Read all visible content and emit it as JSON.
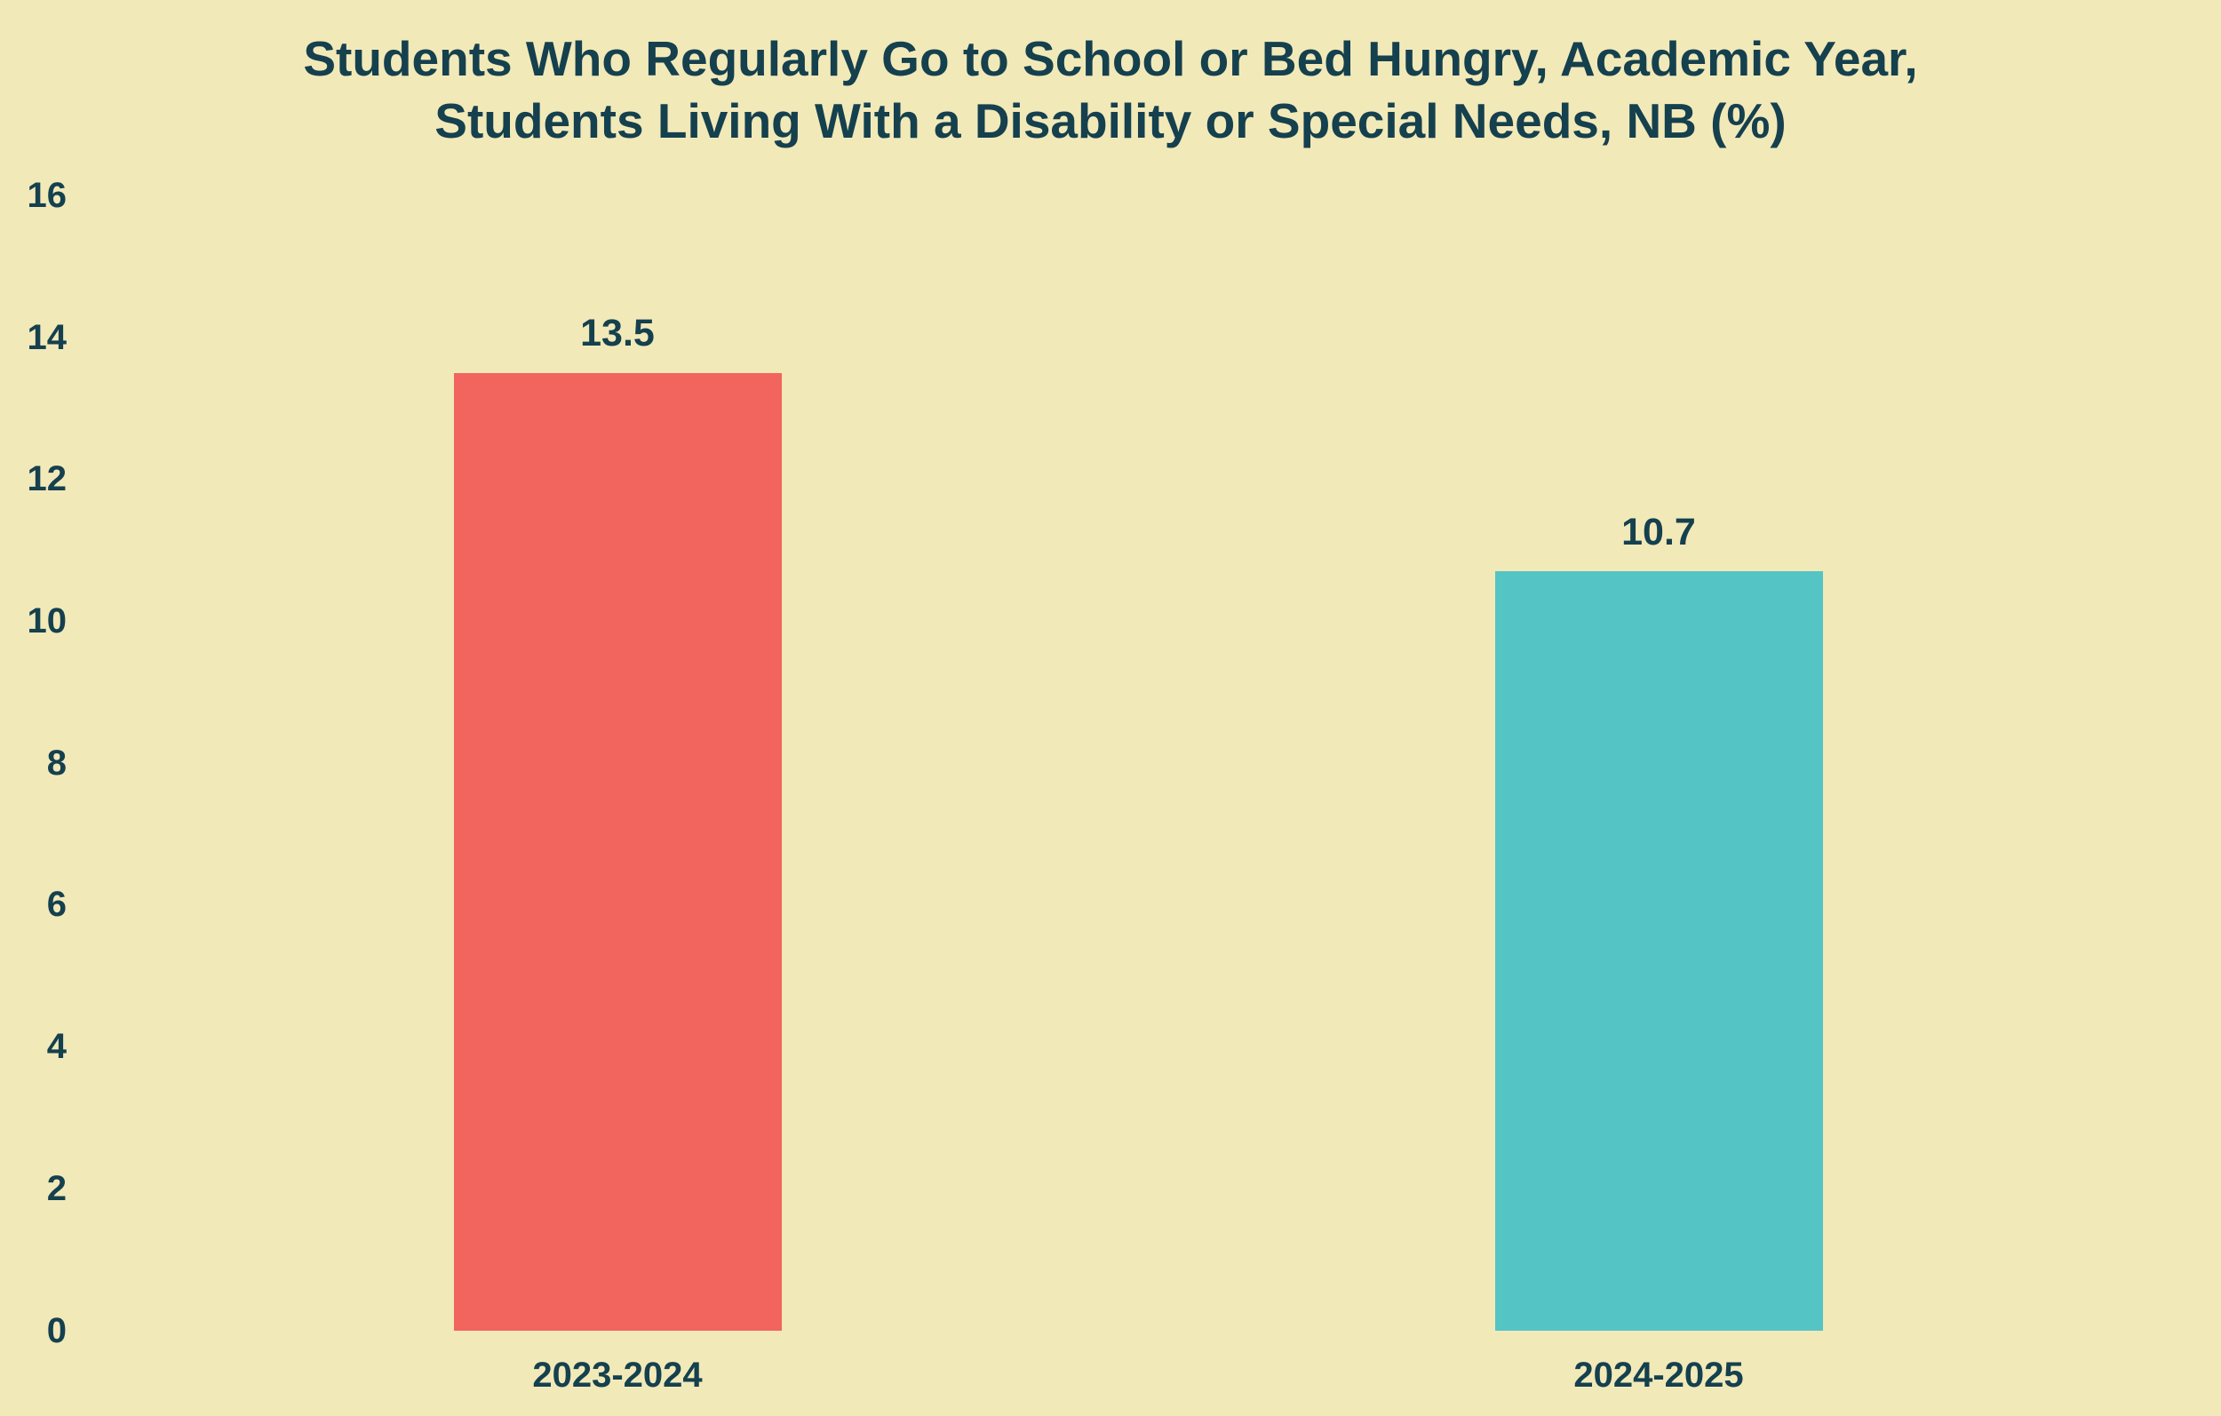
{
  "page": {
    "background": "#F2E9B9",
    "text_color": "#15404E"
  },
  "title": {
    "line1": "Students Who Regularly Go to School or Bed Hungry, Academic Year,",
    "line2": "Students Living With a Disability or Special Needs, NB (%)"
  },
  "chart_data": {
    "type": "bar",
    "title": "Students Who Regularly Go to School or Bed Hungry, Academic Year, Students Living With a Disability or Special Needs, NB (%)",
    "categories": [
      "2023-2024",
      "2024-2025"
    ],
    "values": [
      13.5,
      10.7
    ],
    "value_labels": [
      "13.5",
      "10.7"
    ],
    "bar_colors": [
      "#F2645E",
      "#55C4C4"
    ],
    "xlabel": "",
    "ylabel": "",
    "ylim": [
      0,
      16
    ],
    "yticks": [
      0,
      2,
      4,
      6,
      8,
      10,
      12,
      14,
      16
    ],
    "grid": false,
    "legend": false,
    "background": "#F2E9B9",
    "text_color": "#15404E"
  }
}
